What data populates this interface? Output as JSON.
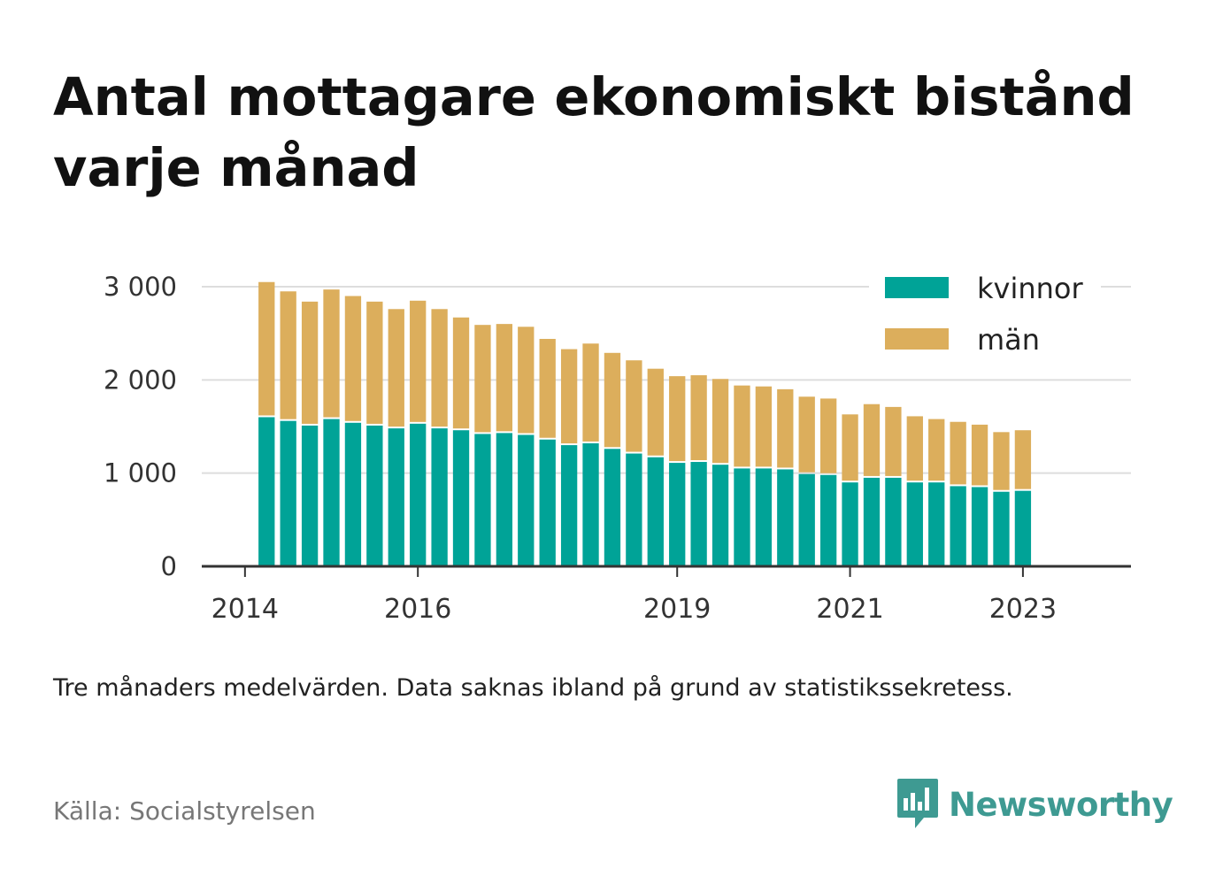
{
  "title": "Antal mottagare ekonomiskt bistånd varje månad",
  "note": "Tre månaders medelvärden. Data saknas ibland på grund av statistikssekretess.",
  "source": "Källa: Socialstyrelsen",
  "brand": {
    "name": "Newsworthy",
    "icon": "bar-chart-speech-bubble-icon"
  },
  "colors": {
    "kvinnor": "#00a397",
    "man": "#dcae5c",
    "brand": "#3e9a92",
    "grid": "#dddddd",
    "axis": "#333333"
  },
  "chart_data": {
    "type": "bar",
    "stacked": true,
    "x_ticks": [
      {
        "value": 2014,
        "label": "2014"
      },
      {
        "value": 2016,
        "label": "2016"
      },
      {
        "value": 2019,
        "label": "2019"
      },
      {
        "value": 2021,
        "label": "2021"
      },
      {
        "value": 2023,
        "label": "2023"
      }
    ],
    "x_range": [
      2013.5,
      2024.25
    ],
    "y_ticks": [
      {
        "value": 0,
        "label": "0"
      },
      {
        "value": 1000,
        "label": "1 000"
      },
      {
        "value": 2000,
        "label": "2 000"
      },
      {
        "value": 3000,
        "label": "3 000"
      }
    ],
    "ylim": [
      0,
      3000
    ],
    "grid": true,
    "legend_position": "top-right",
    "x": [
      2014.25,
      2014.5,
      2014.75,
      2015.0,
      2015.25,
      2015.5,
      2015.75,
      2016.0,
      2016.25,
      2016.5,
      2016.75,
      2017.0,
      2017.25,
      2017.5,
      2017.75,
      2018.0,
      2018.25,
      2018.5,
      2018.75,
      2019.0,
      2019.25,
      2019.5,
      2019.75,
      2020.0,
      2020.25,
      2020.5,
      2020.75,
      2021.0,
      2021.25,
      2021.5,
      2021.75,
      2022.0,
      2022.25,
      2022.5,
      2022.75,
      2023.0
    ],
    "series": [
      {
        "name": "kvinnor",
        "values": [
          1600,
          1560,
          1510,
          1580,
          1540,
          1510,
          1480,
          1530,
          1480,
          1460,
          1420,
          1430,
          1410,
          1360,
          1300,
          1320,
          1260,
          1210,
          1170,
          1110,
          1120,
          1090,
          1050,
          1050,
          1040,
          990,
          980,
          900,
          950,
          950,
          900,
          900,
          860,
          850,
          800,
          810
        ]
      },
      {
        "name": "män",
        "values": [
          1450,
          1390,
          1330,
          1390,
          1360,
          1330,
          1280,
          1320,
          1280,
          1210,
          1170,
          1170,
          1160,
          1080,
          1030,
          1070,
          1030,
          1000,
          950,
          930,
          930,
          920,
          890,
          880,
          860,
          830,
          820,
          730,
          790,
          760,
          710,
          680,
          690,
          670,
          640,
          650
        ]
      }
    ]
  }
}
